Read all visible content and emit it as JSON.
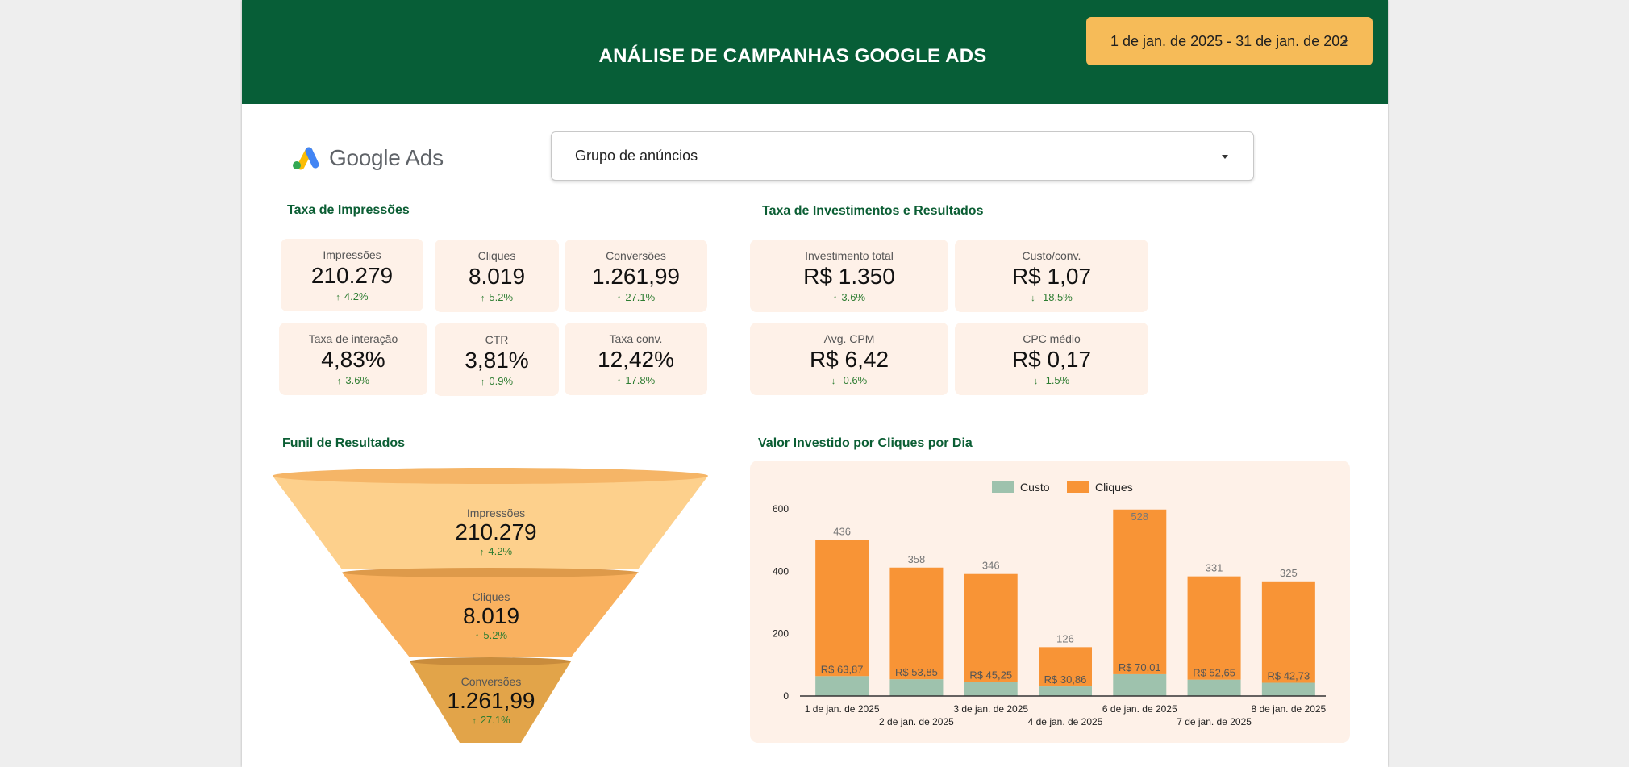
{
  "header": {
    "title": "ANÁLISE DE CAMPANHAS GOOGLE ADS",
    "date_range": "1 de jan. de 2025 - 31 de jan. de 202"
  },
  "logo": {
    "text": "Google Ads"
  },
  "filter": {
    "ad_group_label": "Grupo de anúncios"
  },
  "sections": {
    "impressions": "Taxa de Impressões",
    "investments": "Taxa de Investimentos e Resultados",
    "funnel": "Funil de Resultados",
    "chart": "Valor Investido por Cliques por Dia"
  },
  "impression_metrics": [
    {
      "label": "Impressões",
      "value": "210.279",
      "delta": "4.2%",
      "direction": "up"
    },
    {
      "label": "Cliques",
      "value": "8.019",
      "delta": "5.2%",
      "direction": "up"
    },
    {
      "label": "Conversões",
      "value": "1.261,99",
      "delta": "27.1%",
      "direction": "up"
    },
    {
      "label": "Taxa de interação",
      "value": "4,83%",
      "delta": "3.6%",
      "direction": "up"
    },
    {
      "label": "CTR",
      "value": "3,81%",
      "delta": "0.9%",
      "direction": "up"
    },
    {
      "label": "Taxa conv.",
      "value": "12,42%",
      "delta": "17.8%",
      "direction": "up"
    }
  ],
  "investment_metrics": [
    {
      "label": "Investimento total",
      "value": "R$ 1.350",
      "delta": "3.6%",
      "direction": "up"
    },
    {
      "label": "Custo/conv.",
      "value": "R$ 1,07",
      "delta": "-18.5%",
      "direction": "down"
    },
    {
      "label": "Avg. CPM",
      "value": "R$ 6,42",
      "delta": "-0.6%",
      "direction": "down"
    },
    {
      "label": "CPC médio",
      "value": "R$ 0,17",
      "delta": "-1.5%",
      "direction": "down"
    }
  ],
  "funnel": [
    {
      "label": "Impressões",
      "value": "210.279",
      "delta": "4.2%"
    },
    {
      "label": "Cliques",
      "value": "8.019",
      "delta": "5.2%"
    },
    {
      "label": "Conversões",
      "value": "1.261,99",
      "delta": "27.1%"
    }
  ],
  "icons": {
    "up": "↑",
    "down": "↓"
  },
  "colors": {
    "header": "#075e37",
    "accent": "#f6bb58",
    "card": "#fef1e8",
    "positive": "#2e7d32",
    "custo": "#9ec2ad",
    "cliques": "#f89436",
    "funnel_top": "#fdd08c",
    "funnel_mid": "#f9b15f",
    "funnel_bottom": "#e2a449"
  },
  "chart_data": {
    "type": "bar",
    "stacked": true,
    "categories": [
      "1 de jan. de 2025",
      "2 de jan. de 2025",
      "3 de jan. de 2025",
      "4 de jan. de 2025",
      "6 de jan. de 2025",
      "7 de jan. de 2025",
      "8 de jan. de 2025"
    ],
    "series": [
      {
        "name": "Custo",
        "values": [
          63.87,
          53.85,
          45.25,
          30.86,
          70.01,
          52.65,
          42.73
        ],
        "labels": [
          "R$ 63,87",
          "R$ 53,85",
          "R$ 45,25",
          "R$ 30,86",
          "R$ 70,01",
          "R$ 52,65",
          "R$ 42,73"
        ],
        "color": "#9ec2ad"
      },
      {
        "name": "Cliques",
        "values": [
          436,
          358,
          346,
          126,
          528,
          331,
          325
        ],
        "labels": [
          "436",
          "358",
          "346",
          "126",
          "528",
          "331",
          "325"
        ],
        "color": "#f89436"
      }
    ],
    "yticks": [
      "0",
      "200",
      "400",
      "600"
    ],
    "ylim": [
      0,
      600
    ],
    "legend": "top-center"
  }
}
